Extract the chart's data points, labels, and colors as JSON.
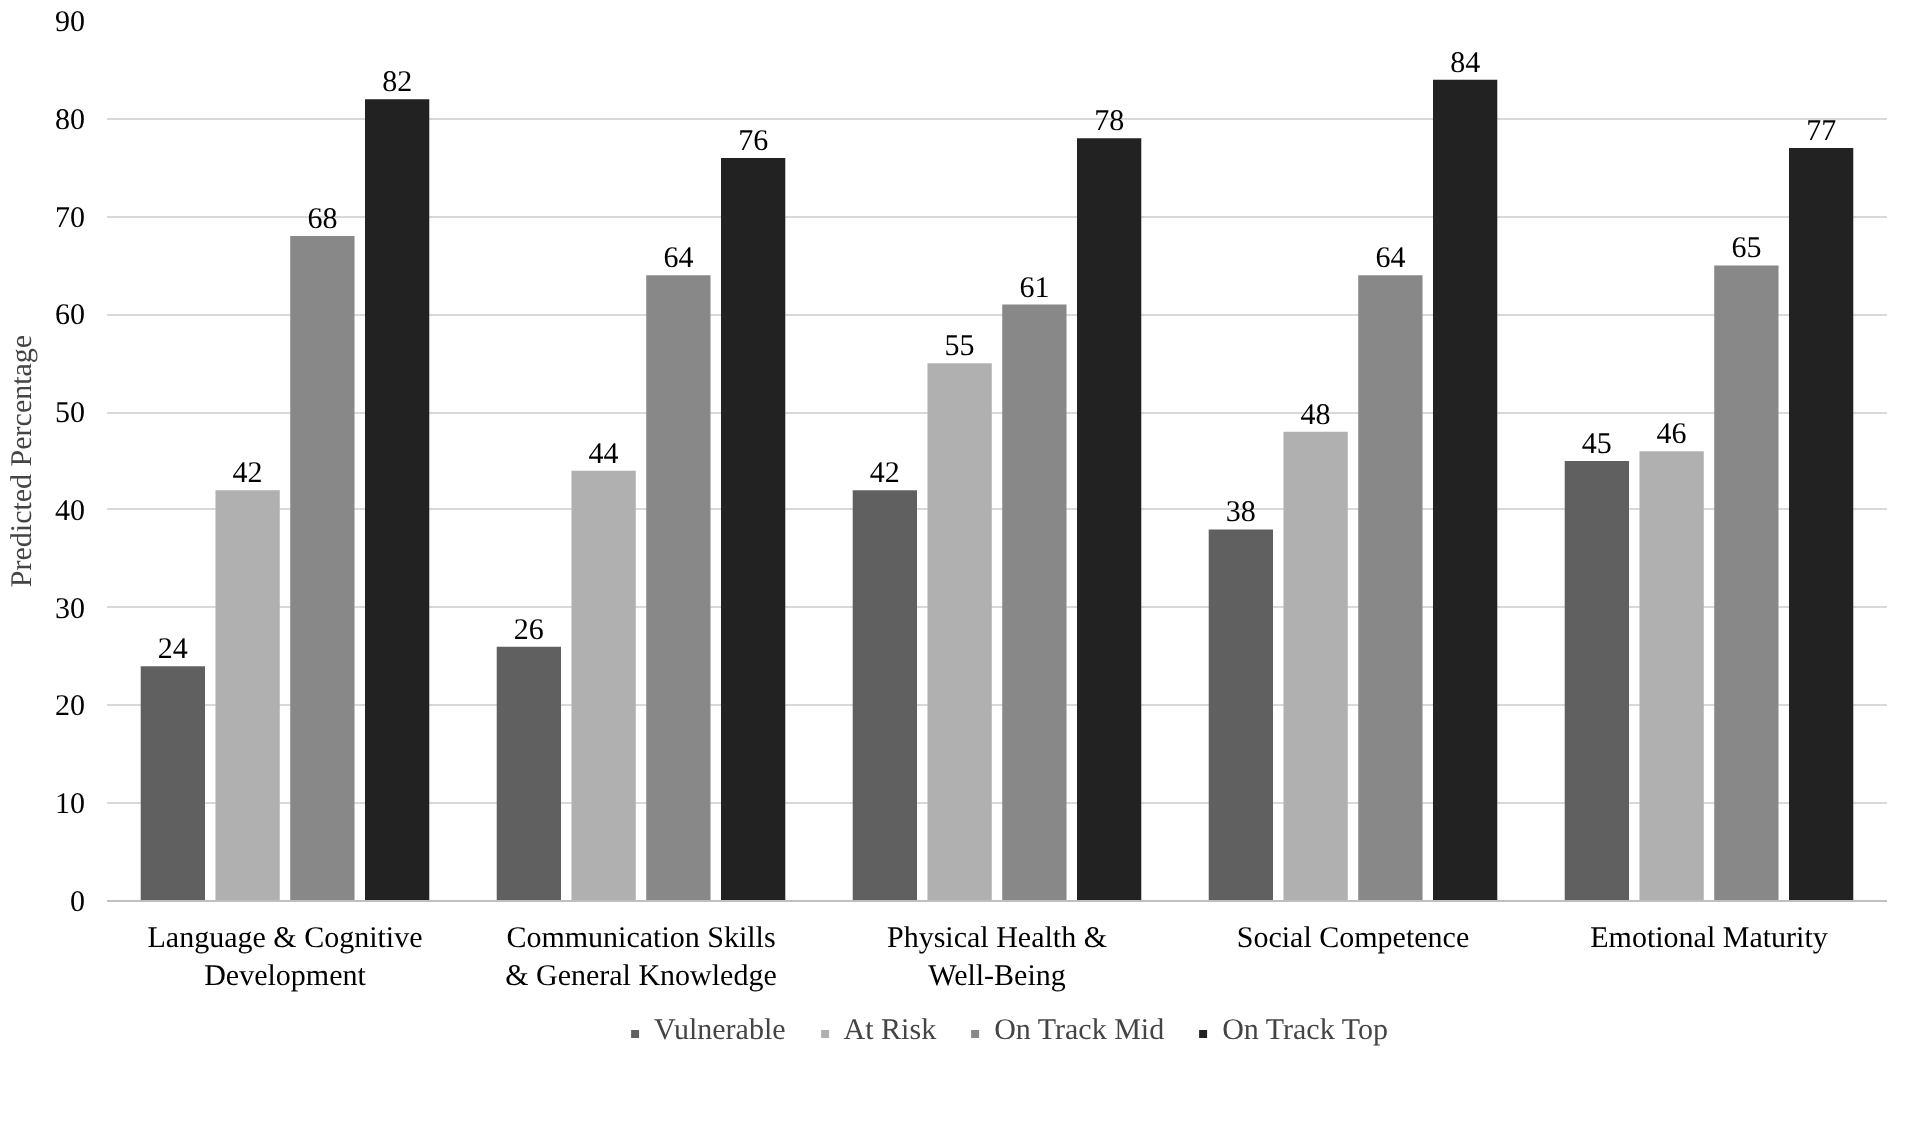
{
  "chart_data": {
    "type": "bar",
    "ylabel": "Predicted Percentage",
    "categories": [
      "Language & Cognitive Development",
      "Communication Skills & General Knowledge",
      "Physical Health & Well-Being",
      "Social Competence",
      "Emotional Maturity"
    ],
    "series": [
      {
        "name": "Vulnerable",
        "color": "#606060",
        "values": [
          24,
          26,
          42,
          38,
          45
        ]
      },
      {
        "name": "At Risk",
        "color": "#b0b0b0",
        "values": [
          42,
          44,
          55,
          48,
          46
        ]
      },
      {
        "name": "On Track Mid",
        "color": "#888888",
        "values": [
          68,
          64,
          61,
          64,
          65
        ]
      },
      {
        "name": "On Track Top",
        "color": "#222222",
        "values": [
          82,
          76,
          78,
          84,
          77
        ]
      }
    ],
    "ylim": [
      0,
      90
    ],
    "yticks": [
      0,
      10,
      20,
      30,
      40,
      50,
      60,
      70,
      80,
      90
    ],
    "grid": "y",
    "legend": "bottom",
    "data_labels": true
  }
}
